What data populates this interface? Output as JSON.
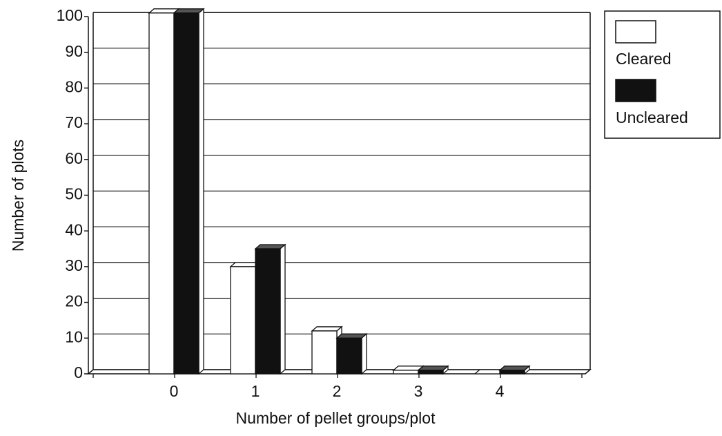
{
  "chart_data": {
    "type": "bar3d",
    "x_label": "Number of pellet groups/plot",
    "y_label": "Number of plots",
    "categories": [
      "0",
      "1",
      "2",
      "3",
      "4"
    ],
    "series": [
      {
        "name": "Cleared",
        "color": "#ffffff",
        "values": [
          101,
          30,
          12,
          1,
          0
        ]
      },
      {
        "name": "Uncleared",
        "color": "#111111",
        "values": [
          101,
          35,
          10,
          1,
          1
        ]
      }
    ],
    "ylim": [
      0,
      100
    ],
    "yticks": [
      0,
      10,
      20,
      30,
      40,
      50,
      60,
      70,
      80,
      90,
      100
    ],
    "grid": true,
    "legend": "right"
  }
}
